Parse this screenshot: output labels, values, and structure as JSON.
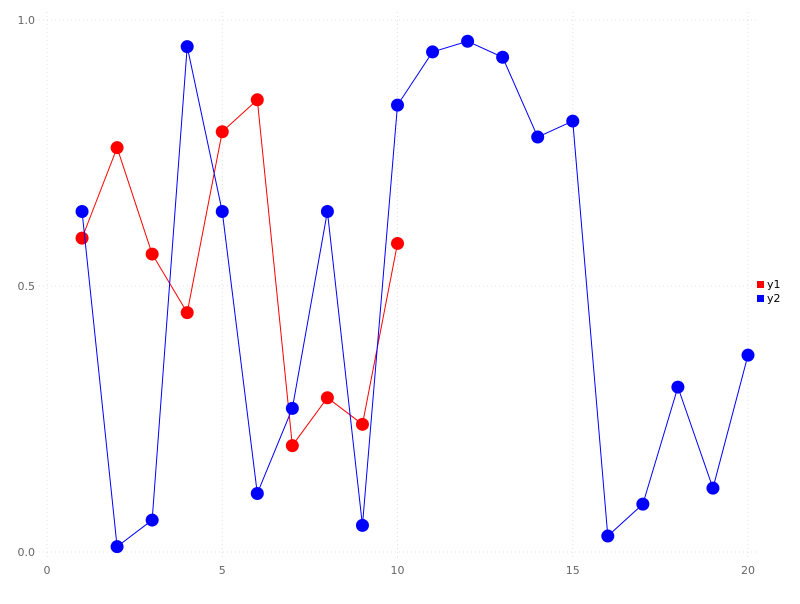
{
  "page": {
    "background": "#ffffff"
  },
  "chart_data": {
    "type": "line",
    "title": "",
    "xlabel": "",
    "ylabel": "",
    "xlim": [
      0,
      20
    ],
    "ylim": [
      0,
      1.0
    ],
    "grid": true,
    "legend_position": "right",
    "xticks": {
      "values": [
        0,
        5,
        10,
        15,
        20
      ],
      "labels": [
        "0",
        "5",
        "10",
        "15",
        "20"
      ]
    },
    "yticks": {
      "values": [
        0,
        0.5,
        1.0
      ],
      "labels": [
        "0.0",
        "0.5",
        "1.0"
      ]
    },
    "series": [
      {
        "name": "y1",
        "color": "#ff0000",
        "x": [
          1,
          2,
          3,
          4,
          5,
          6,
          7,
          8,
          9,
          10
        ],
        "y": [
          0.59,
          0.76,
          0.56,
          0.45,
          0.79,
          0.85,
          0.2,
          0.29,
          0.24,
          0.58
        ]
      },
      {
        "name": "y2",
        "color": "#0000ff",
        "x": [
          1,
          2,
          3,
          4,
          5,
          6,
          7,
          8,
          9,
          10,
          11,
          12,
          13,
          14,
          15,
          16,
          17,
          18,
          19,
          20
        ],
        "y": [
          0.64,
          0.01,
          0.06,
          0.95,
          0.64,
          0.11,
          0.27,
          0.64,
          0.05,
          0.84,
          0.94,
          0.96,
          0.93,
          0.78,
          0.81,
          0.03,
          0.09,
          0.31,
          0.12,
          0.37
        ]
      }
    ],
    "colors": {
      "grid": "#e0e0e0",
      "tick_label": "#666666",
      "legend_text": "#000000",
      "background": "#ffffff"
    },
    "marker_radius": 6.5,
    "line_width": 1
  }
}
